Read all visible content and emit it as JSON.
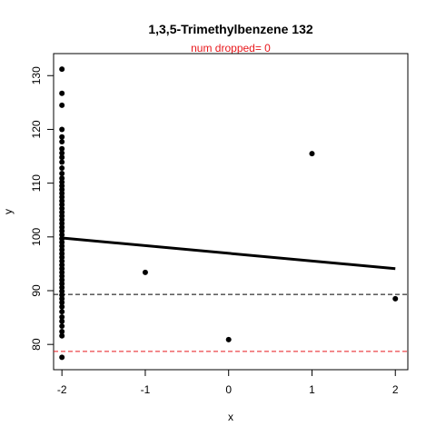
{
  "chart_data": {
    "type": "scatter",
    "title": "1,3,5-Trimethylbenzene 132",
    "subtitle": "num dropped= 0",
    "xlabel": "x",
    "ylabel": "y",
    "xlim": [
      -2.1,
      2.15
    ],
    "ylim": [
      75.3,
      134.1
    ],
    "xticks": [
      -2,
      -1,
      0,
      1,
      2
    ],
    "yticks": [
      80,
      90,
      100,
      110,
      120,
      130
    ],
    "grid": false,
    "colors": {
      "points": "#000000",
      "fit_line": "#000000",
      "ref_black": "#000000",
      "ref_red": "#e8181c",
      "subtitle": "#e8181c"
    },
    "points": [
      [
        -2,
        131.2
      ],
      [
        -2,
        126.7
      ],
      [
        -2,
        124.5
      ],
      [
        -2,
        120.0
      ],
      [
        -2,
        118.6
      ],
      [
        -2,
        117.7
      ],
      [
        -2,
        116.4
      ],
      [
        -2,
        115.6
      ],
      [
        -2,
        114.8
      ],
      [
        -2,
        113.9
      ],
      [
        -2,
        112.8
      ],
      [
        -2,
        111.8
      ],
      [
        -2,
        110.9
      ],
      [
        -2,
        110.2
      ],
      [
        -2,
        109.5
      ],
      [
        -2,
        108.8
      ],
      [
        -2,
        108.1
      ],
      [
        -2,
        107.4
      ],
      [
        -2,
        106.7
      ],
      [
        -2,
        106.0
      ],
      [
        -2,
        105.3
      ],
      [
        -2,
        104.6
      ],
      [
        -2,
        103.9
      ],
      [
        -2,
        103.2
      ],
      [
        -2,
        102.5
      ],
      [
        -2,
        101.8
      ],
      [
        -2,
        101.1
      ],
      [
        -2,
        100.4
      ],
      [
        -2,
        99.7
      ],
      [
        -2,
        99.0
      ],
      [
        -2,
        98.3
      ],
      [
        -2,
        97.6
      ],
      [
        -2,
        96.9
      ],
      [
        -2,
        96.2
      ],
      [
        -2,
        95.5
      ],
      [
        -2,
        94.8
      ],
      [
        -2,
        94.1
      ],
      [
        -2,
        93.4
      ],
      [
        -2,
        92.7
      ],
      [
        -2,
        92.0
      ],
      [
        -2,
        91.3
      ],
      [
        -2,
        90.6
      ],
      [
        -2,
        89.9
      ],
      [
        -2,
        89.2
      ],
      [
        -2,
        88.5
      ],
      [
        -2,
        87.8
      ],
      [
        -2,
        87.0
      ],
      [
        -2,
        86.1
      ],
      [
        -2,
        85.1
      ],
      [
        -2,
        84.3
      ],
      [
        -2,
        83.4
      ],
      [
        -2,
        82.4
      ],
      [
        -2,
        81.6
      ],
      [
        -2,
        77.6
      ],
      [
        -1,
        93.4
      ],
      [
        0,
        80.9
      ],
      [
        1,
        115.5
      ],
      [
        2,
        88.5
      ]
    ],
    "fit_line": {
      "x": [
        -2,
        2
      ],
      "y": [
        99.8,
        94.1
      ]
    },
    "ref_lines": [
      {
        "y": 89.3,
        "color": "black",
        "style": "dashed"
      },
      {
        "y": 78.7,
        "color": "red",
        "style": "dashed"
      }
    ]
  }
}
